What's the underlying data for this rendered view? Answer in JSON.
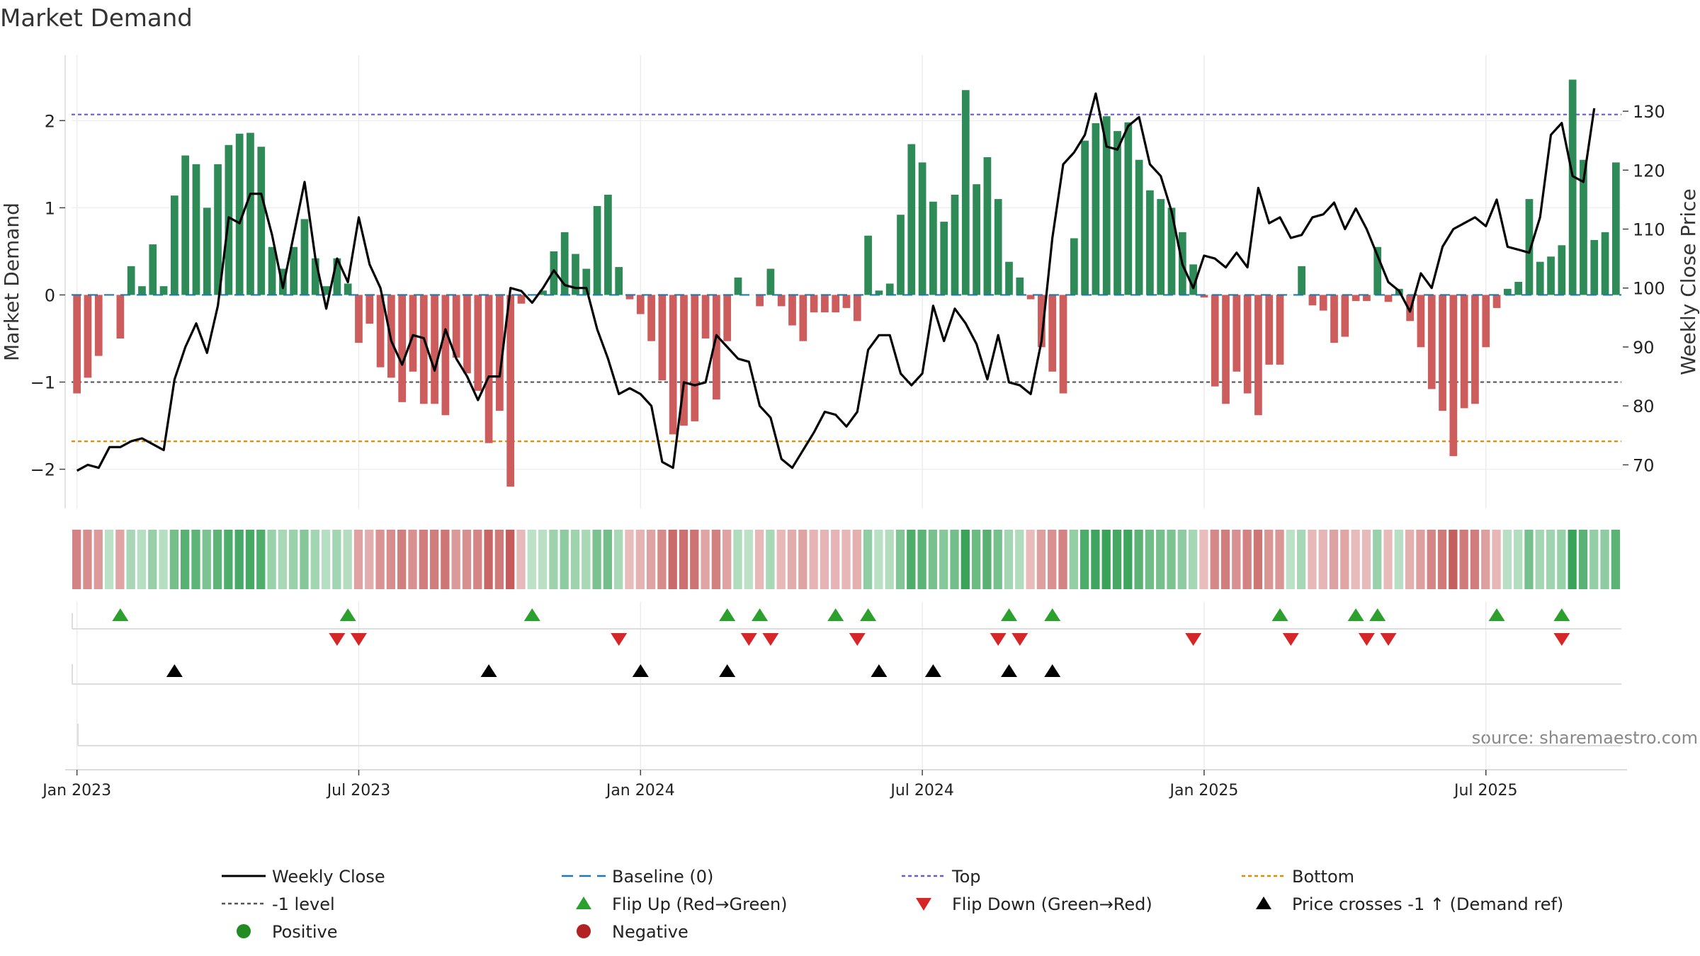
{
  "chart_data": {
    "type": "bar+line",
    "title": "Market Demand",
    "ylabel_left": "Market Demand",
    "ylabel_right": "Weekly Close Price",
    "source": "source: sharemaestro.com",
    "x_tick_labels": [
      "Jan 2023",
      "Jul 2023",
      "Jan 2024",
      "Jul 2024",
      "Jan 2025",
      "Jul 2025"
    ],
    "x_tick_weeks": [
      0,
      26,
      52,
      78,
      104,
      130
    ],
    "y_left_ticks": [
      -2,
      -1,
      0,
      1,
      2
    ],
    "y_left_tick_labels": [
      "−2",
      "−1",
      "0",
      "1",
      "2"
    ],
    "y_left_range": [
      -2.45,
      2.75
    ],
    "y_right_ticks": [
      70,
      80,
      90,
      100,
      110,
      120,
      130
    ],
    "y_right_range": [
      62.6,
      139.5
    ],
    "reference_levels": {
      "top": 2.07,
      "minus_one": -1.0,
      "bottom": -1.68,
      "baseline": 0
    },
    "demand_values": [
      -1.13,
      -0.95,
      -0.7,
      0,
      -0.5,
      0.33,
      0.1,
      0.58,
      0.1,
      1.14,
      1.6,
      1.5,
      1.0,
      1.5,
      1.72,
      1.85,
      1.86,
      1.7,
      0.55,
      0.3,
      0.55,
      0.87,
      0.42,
      0.1,
      0.42,
      0.13,
      -0.55,
      -0.33,
      -0.83,
      -0.95,
      -1.23,
      -0.88,
      -1.25,
      -1.25,
      -1.38,
      -0.72,
      -0.9,
      -1.1,
      -1.7,
      -1.33,
      -2.2,
      -0.1,
      0,
      0.05,
      0.5,
      0.72,
      0.47,
      0.3,
      1.02,
      1.15,
      0.32,
      -0.05,
      -0.22,
      -0.53,
      -0.98,
      -1.6,
      -1.5,
      -1.45,
      -0.5,
      -1.2,
      -0.53,
      0.2,
      0,
      -0.13,
      0.3,
      -0.13,
      -0.35,
      -0.53,
      -0.2,
      -0.2,
      -0.2,
      -0.15,
      -0.3,
      0.68,
      0.05,
      0.13,
      0.92,
      1.73,
      1.52,
      1.07,
      0.84,
      1.15,
      2.35,
      1.27,
      1.58,
      1.1,
      0.38,
      0.2,
      -0.05,
      -0.6,
      -0.88,
      -1.13,
      0.65,
      1.77,
      1.97,
      2.05,
      1.88,
      1.98,
      1.55,
      1.2,
      1.1,
      1.0,
      0.72,
      0.35,
      -0.03,
      -1.05,
      -1.25,
      -0.88,
      -1.13,
      -1.38,
      -0.8,
      -0.8,
      0,
      0.33,
      -0.12,
      -0.18,
      -0.55,
      -0.48,
      -0.07,
      -0.07,
      0.55,
      -0.08,
      0.07,
      -0.3,
      -0.6,
      -1.08,
      -1.33,
      -1.85,
      -1.3,
      -1.25,
      -0.6,
      -0.15,
      0.07,
      0.15,
      1.1,
      0.38,
      0.44,
      0.57,
      2.47,
      1.55,
      0.63,
      0.72,
      1.52
    ],
    "weekly_close": [
      69,
      70,
      69.5,
      73,
      73,
      74,
      74.5,
      73.5,
      72.5,
      84.5,
      90,
      94,
      89,
      97,
      112,
      111,
      116,
      116,
      109,
      100,
      109,
      118,
      105,
      96.5,
      105,
      101,
      112,
      104,
      100,
      91,
      87,
      92,
      91.5,
      86,
      93,
      88,
      85,
      81,
      85,
      85,
      100,
      99.5,
      97.5,
      100,
      103,
      100.5,
      100,
      100,
      93,
      88,
      82,
      83,
      82,
      80,
      70.5,
      69.5,
      84,
      83.5,
      84,
      92,
      90,
      88,
      87.5,
      80,
      78,
      71,
      69.5,
      72.5,
      75.5,
      79,
      78.5,
      76.5,
      79,
      89.5,
      92,
      92,
      85.5,
      83.5,
      85.5,
      97,
      91,
      96.5,
      94,
      90.5,
      84.5,
      92,
      84,
      83.5,
      82,
      91,
      108.5,
      121,
      123,
      126,
      133,
      124,
      123.5,
      127.5,
      129,
      121,
      119,
      113,
      104,
      100,
      105.5,
      105,
      103.5,
      106,
      103.5,
      117,
      111,
      112,
      108.5,
      109,
      112,
      112.5,
      114.5,
      110,
      113.5,
      110,
      105.5,
      101,
      99.5,
      96,
      102.5,
      100,
      107,
      110,
      111,
      112,
      110.5,
      115,
      107,
      106.5,
      106,
      112,
      126,
      128,
      119,
      118,
      130.5
    ],
    "flip_up_weeks": [
      4,
      25,
      42,
      60,
      63,
      70,
      73,
      86,
      90,
      111,
      118,
      120,
      131,
      137
    ],
    "flip_down_weeks": [
      24,
      26,
      50,
      62,
      64,
      72,
      85,
      87,
      103,
      112,
      119,
      121,
      137
    ],
    "price_cross_weeks": [
      9,
      38,
      52,
      60,
      74,
      79,
      86,
      90
    ],
    "legend": [
      {
        "label": "Weekly Close",
        "symbol": "line-black"
      },
      {
        "label": "Baseline (0)",
        "symbol": "dash-blue"
      },
      {
        "label": "Top",
        "symbol": "dot-purple"
      },
      {
        "label": "Bottom",
        "symbol": "dot-orange"
      },
      {
        "label": "-1 level",
        "symbol": "dot-gray"
      },
      {
        "label": "Flip Up (Red→Green)",
        "symbol": "tri-up-green"
      },
      {
        "label": "Flip Down (Green→Red)",
        "symbol": "tri-down-red"
      },
      {
        "label": "Price crosses -1 ↑ (Demand ref)",
        "symbol": "tri-up-black"
      },
      {
        "label": "Positive",
        "symbol": "circle-green"
      },
      {
        "label": "Negative",
        "symbol": "circle-red"
      }
    ],
    "colors": {
      "positive_bar": "#2e8b57",
      "negative_bar": "#cd5c5c",
      "price_line": "#000000",
      "top_line": "#6a5acd",
      "minus_one_line": "#555555",
      "bottom_line": "#e08a00",
      "baseline": "#1f77b4",
      "flip_up": "#2ca02c",
      "flip_down": "#d62728",
      "cross": "#000000",
      "positive_dot": "#228b22",
      "negative_dot": "#b22222"
    }
  }
}
